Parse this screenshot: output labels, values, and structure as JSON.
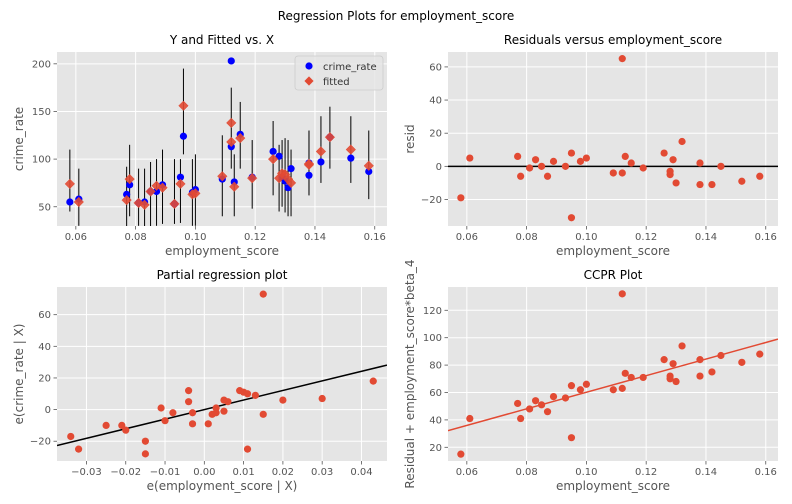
{
  "figure": {
    "suptitle": "Regression Plots for employment_score"
  },
  "colors": {
    "background": "#E5E5E5",
    "grid": "#FFFFFF",
    "blue": "#0000FF",
    "red": "#E24A33",
    "black": "#000000",
    "vline": "#000000"
  },
  "chart_data": [
    {
      "type": "scatter",
      "title": "Y and Fitted vs. X",
      "xlabel": "employment_score",
      "ylabel": "crime_rate",
      "xlim": [
        0.0537,
        0.1641
      ],
      "ylim": [
        29.8,
        212.4
      ],
      "xticks": [
        0.06,
        0.08,
        0.1,
        0.12,
        0.14,
        0.16
      ],
      "xtick_labels": [
        "0.06",
        "0.08",
        "0.10",
        "0.12",
        "0.14",
        "0.16"
      ],
      "yticks": [
        50,
        100,
        150,
        200
      ],
      "ytick_labels": [
        "50",
        "100",
        "150",
        "200"
      ],
      "grid": true,
      "legend": {
        "placement": "top-right",
        "entries": [
          "crime_rate",
          "fitted"
        ]
      },
      "series": [
        {
          "name": "crime_rate",
          "marker": "circle",
          "points": [
            [
              0.058,
              55
            ],
            [
              0.061,
              58
            ],
            [
              0.077,
              63
            ],
            [
              0.078,
              73
            ],
            [
              0.081,
              54
            ],
            [
              0.083,
              55
            ],
            [
              0.085,
              66
            ],
            [
              0.087,
              66
            ],
            [
              0.089,
              73
            ],
            [
              0.093,
              53
            ],
            [
              0.095,
              81
            ],
            [
              0.096,
              124
            ],
            [
              0.099,
              65
            ],
            [
              0.1,
              68
            ],
            [
              0.109,
              79
            ],
            [
              0.112,
              113
            ],
            [
              0.113,
              76
            ],
            [
              0.115,
              126
            ],
            [
              0.119,
              81
            ],
            [
              0.126,
              108
            ],
            [
              0.128,
              103
            ],
            [
              0.129,
              81
            ],
            [
              0.13,
              77
            ],
            [
              0.131,
              70
            ],
            [
              0.132,
              90
            ],
            [
              0.138,
              83
            ],
            [
              0.138,
              96
            ],
            [
              0.142,
              97
            ],
            [
              0.145,
              123
            ],
            [
              0.152,
              101
            ],
            [
              0.158,
              87
            ],
            [
              0.112,
              203
            ]
          ]
        },
        {
          "name": "fitted",
          "marker": "diamond",
          "points": [
            [
              0.058,
              74
            ],
            [
              0.061,
              55
            ],
            [
              0.077,
              57
            ],
            [
              0.078,
              79
            ],
            [
              0.081,
              54
            ],
            [
              0.083,
              52
            ],
            [
              0.085,
              66
            ],
            [
              0.087,
              72
            ],
            [
              0.089,
              70
            ],
            [
              0.093,
              53
            ],
            [
              0.095,
              74
            ],
            [
              0.096,
              156
            ],
            [
              0.099,
              63
            ],
            [
              0.1,
              64
            ],
            [
              0.109,
              82
            ],
            [
              0.112,
              138
            ],
            [
              0.113,
              71
            ],
            [
              0.115,
              122
            ],
            [
              0.119,
              80
            ],
            [
              0.126,
              100
            ],
            [
              0.128,
              80
            ],
            [
              0.129,
              85
            ],
            [
              0.13,
              84
            ],
            [
              0.131,
              79
            ],
            [
              0.132,
              75
            ],
            [
              0.138,
              94
            ],
            [
              0.138,
              95
            ],
            [
              0.142,
              108
            ],
            [
              0.145,
              123
            ],
            [
              0.152,
              110
            ],
            [
              0.158,
              93
            ],
            [
              0.112,
              118
            ]
          ]
        }
      ],
      "error_bars": [
        [
          0.058,
          45,
          110
        ],
        [
          0.061,
          30,
          90
        ],
        [
          0.077,
          22,
          92
        ],
        [
          0.078,
          40,
          115
        ],
        [
          0.081,
          30,
          90
        ],
        [
          0.083,
          20,
          90
        ],
        [
          0.085,
          20,
          97
        ],
        [
          0.087,
          30,
          100
        ],
        [
          0.089,
          32,
          110
        ],
        [
          0.093,
          32,
          100
        ],
        [
          0.095,
          33,
          100
        ],
        [
          0.096,
          105,
          195
        ],
        [
          0.099,
          30,
          100
        ],
        [
          0.1,
          30,
          105
        ],
        [
          0.109,
          40,
          125
        ],
        [
          0.112,
          90,
          175
        ],
        [
          0.113,
          40,
          105
        ],
        [
          0.115,
          90,
          160
        ],
        [
          0.119,
          48,
          120
        ],
        [
          0.126,
          62,
          140
        ],
        [
          0.128,
          45,
          115
        ],
        [
          0.129,
          50,
          120
        ],
        [
          0.13,
          44,
          122
        ],
        [
          0.131,
          40,
          120
        ],
        [
          0.132,
          40,
          110
        ],
        [
          0.138,
          62,
          130
        ],
        [
          0.138,
          62,
          130
        ],
        [
          0.142,
          75,
          145
        ],
        [
          0.145,
          90,
          155
        ],
        [
          0.152,
          75,
          145
        ],
        [
          0.158,
          58,
          130
        ]
      ]
    },
    {
      "type": "scatter",
      "title": "Residuals versus employment_score",
      "xlabel": "employment_score",
      "ylabel": "resid",
      "xlim": [
        0.0537,
        0.1641
      ],
      "ylim": [
        -36.0,
        69.0
      ],
      "xticks": [
        0.06,
        0.08,
        0.1,
        0.12,
        0.14,
        0.16
      ],
      "xtick_labels": [
        "0.06",
        "0.08",
        "0.10",
        "0.12",
        "0.14",
        "0.16"
      ],
      "yticks": [
        -20,
        0,
        20,
        40,
        60
      ],
      "ytick_labels": [
        "−20",
        "0",
        "20",
        "40",
        "60"
      ],
      "grid": true,
      "hline": 0,
      "series": [
        {
          "name": "",
          "points": [
            [
              0.058,
              -19
            ],
            [
              0.061,
              5
            ],
            [
              0.077,
              6
            ],
            [
              0.078,
              -6
            ],
            [
              0.081,
              -1
            ],
            [
              0.083,
              4
            ],
            [
              0.085,
              0
            ],
            [
              0.087,
              -6
            ],
            [
              0.089,
              3
            ],
            [
              0.093,
              0
            ],
            [
              0.095,
              8
            ],
            [
              0.095,
              -31
            ],
            [
              0.098,
              3
            ],
            [
              0.1,
              5
            ],
            [
              0.109,
              -4
            ],
            [
              0.112,
              65
            ],
            [
              0.112,
              -4
            ],
            [
              0.113,
              6
            ],
            [
              0.115,
              2
            ],
            [
              0.119,
              -1
            ],
            [
              0.126,
              8
            ],
            [
              0.128,
              -5
            ],
            [
              0.128,
              -3
            ],
            [
              0.129,
              4
            ],
            [
              0.13,
              -10
            ],
            [
              0.132,
              15
            ],
            [
              0.138,
              2
            ],
            [
              0.138,
              -11
            ],
            [
              0.142,
              -11
            ],
            [
              0.145,
              0
            ],
            [
              0.152,
              -9
            ],
            [
              0.158,
              -6
            ]
          ]
        }
      ]
    },
    {
      "type": "scatter",
      "title": "Partial regression plot",
      "xlabel": "e(employment_score | X)",
      "ylabel": "e(crime_rate | X)",
      "xlim": [
        -0.0375,
        0.0465
      ],
      "ylim": [
        -32.5,
        77.5
      ],
      "xticks": [
        -0.03,
        -0.02,
        -0.01,
        0.0,
        0.01,
        0.02,
        0.03,
        0.04
      ],
      "xtick_labels": [
        "−0.03",
        "−0.02",
        "−0.01",
        "0.00",
        "0.01",
        "0.02",
        "0.03",
        "0.04"
      ],
      "yticks": [
        -20,
        0,
        20,
        40,
        60
      ],
      "ytick_labels": [
        "−20",
        "0",
        "20",
        "40",
        "60"
      ],
      "grid": true,
      "fit_line": {
        "slope": 605,
        "intercept": 0
      },
      "series": [
        {
          "name": "",
          "points": [
            [
              -0.034,
              -17
            ],
            [
              -0.032,
              -25
            ],
            [
              -0.025,
              -10
            ],
            [
              -0.021,
              -10
            ],
            [
              -0.02,
              -13
            ],
            [
              -0.015,
              -20
            ],
            [
              -0.015,
              -28
            ],
            [
              -0.011,
              1
            ],
            [
              -0.01,
              -7
            ],
            [
              -0.008,
              -2
            ],
            [
              -0.004,
              12
            ],
            [
              -0.004,
              5
            ],
            [
              -0.003,
              -2
            ],
            [
              -0.003,
              -9
            ],
            [
              0.001,
              -9
            ],
            [
              0.002,
              -3
            ],
            [
              0.003,
              -2
            ],
            [
              0.003,
              1
            ],
            [
              0.005,
              6
            ],
            [
              0.005,
              -1
            ],
            [
              0.006,
              5
            ],
            [
              0.009,
              12
            ],
            [
              0.01,
              11
            ],
            [
              0.011,
              10
            ],
            [
              0.011,
              -25
            ],
            [
              0.013,
              9
            ],
            [
              0.015,
              -3
            ],
            [
              0.015,
              73
            ],
            [
              0.02,
              6
            ],
            [
              0.03,
              7
            ],
            [
              0.043,
              18
            ]
          ]
        }
      ]
    },
    {
      "type": "scatter",
      "title": "CCPR Plot",
      "xlabel": "employment_score",
      "ylabel": "Residual + employment_score*beta_4",
      "xlim": [
        0.0537,
        0.1641
      ],
      "ylim": [
        10.0,
        137.0
      ],
      "xticks": [
        0.06,
        0.08,
        0.1,
        0.12,
        0.14,
        0.16
      ],
      "xtick_labels": [
        "0.06",
        "0.08",
        "0.10",
        "0.12",
        "0.14",
        "0.16"
      ],
      "yticks": [
        20,
        40,
        60,
        80,
        100,
        120
      ],
      "ytick_labels": [
        "20",
        "40",
        "60",
        "80",
        "100",
        "120"
      ],
      "grid": true,
      "fit_line": {
        "slope": 605,
        "intercept": 0
      },
      "series": [
        {
          "name": "",
          "points": [
            [
              0.058,
              15
            ],
            [
              0.061,
              41
            ],
            [
              0.077,
              52
            ],
            [
              0.078,
              41
            ],
            [
              0.081,
              48
            ],
            [
              0.083,
              54
            ],
            [
              0.085,
              51
            ],
            [
              0.087,
              46
            ],
            [
              0.089,
              57
            ],
            [
              0.093,
              56
            ],
            [
              0.095,
              65
            ],
            [
              0.095,
              27
            ],
            [
              0.098,
              62
            ],
            [
              0.1,
              66
            ],
            [
              0.109,
              62
            ],
            [
              0.112,
              132
            ],
            [
              0.112,
              63
            ],
            [
              0.113,
              74
            ],
            [
              0.115,
              71
            ],
            [
              0.119,
              71
            ],
            [
              0.126,
              84
            ],
            [
              0.128,
              72
            ],
            [
              0.128,
              70
            ],
            [
              0.129,
              81
            ],
            [
              0.13,
              68
            ],
            [
              0.132,
              94
            ],
            [
              0.138,
              84
            ],
            [
              0.138,
              72
            ],
            [
              0.142,
              75
            ],
            [
              0.145,
              87
            ],
            [
              0.152,
              82
            ],
            [
              0.158,
              88
            ]
          ]
        }
      ]
    }
  ]
}
